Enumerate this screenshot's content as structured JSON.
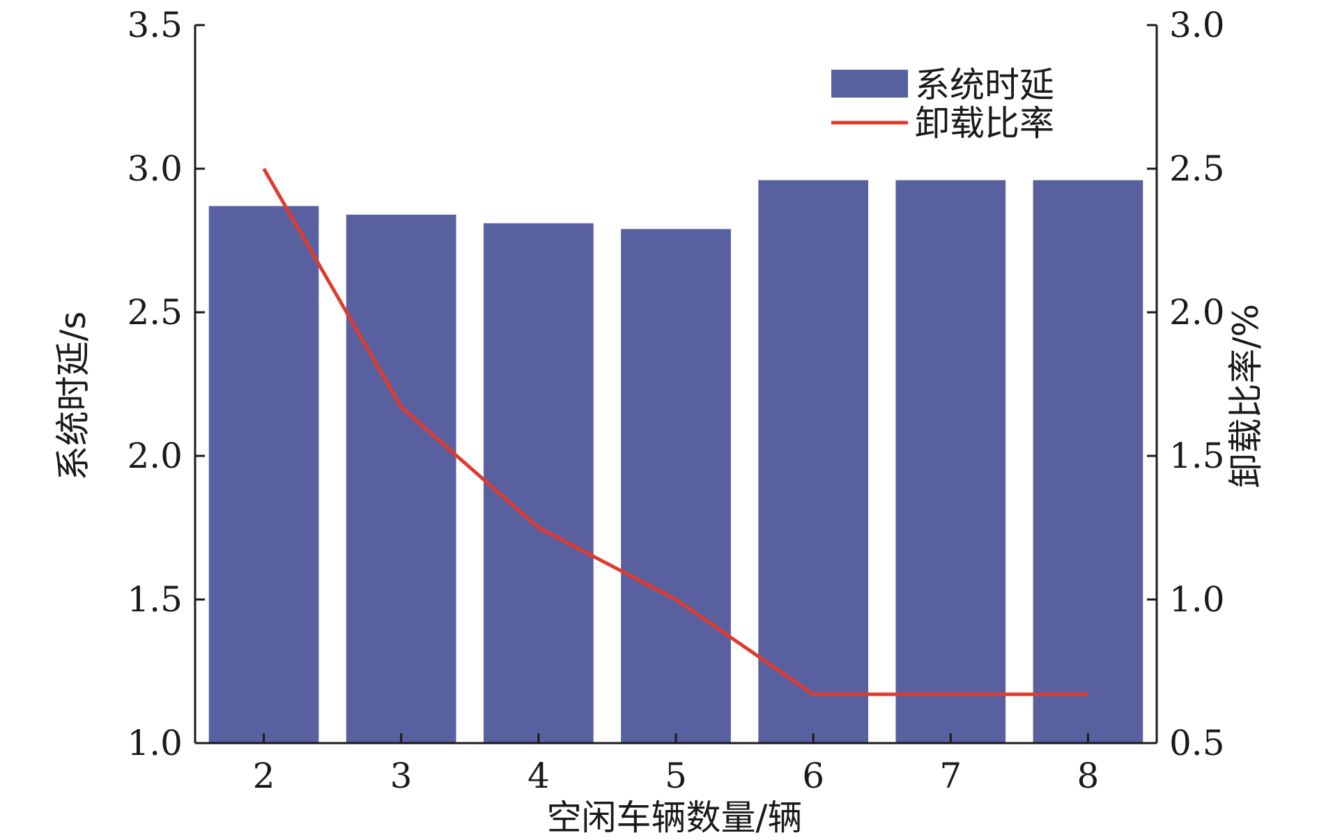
{
  "chart_data": {
    "type": "bar",
    "categories": [
      "2",
      "3",
      "4",
      "5",
      "6",
      "7",
      "8"
    ],
    "series": [
      {
        "name": "系统时延",
        "type": "bar",
        "axis": "left",
        "values": [
          2.87,
          2.84,
          2.81,
          2.79,
          2.96,
          2.96,
          2.96
        ],
        "color": "#5860a0"
      },
      {
        "name": "卸载比率",
        "type": "line",
        "axis": "right",
        "values": [
          2.5,
          1.67,
          1.25,
          1.0,
          0.67,
          0.67,
          0.67
        ],
        "color": "#e03a2c"
      }
    ],
    "xlabel": "空闲车辆数量/辆",
    "ylabel": "系统时延/s",
    "ylabel_right": "卸载比率/%",
    "ylim": [
      1.0,
      3.5
    ],
    "ylim_right": [
      0.5,
      3.0
    ],
    "yticks": [
      "1.0",
      "1.5",
      "2.0",
      "2.5",
      "3.0",
      "3.5"
    ],
    "yticks_right": [
      "0.5",
      "1.0",
      "1.5",
      "2.0",
      "2.5",
      "3.0"
    ],
    "grid": false,
    "legend": "top-right"
  }
}
